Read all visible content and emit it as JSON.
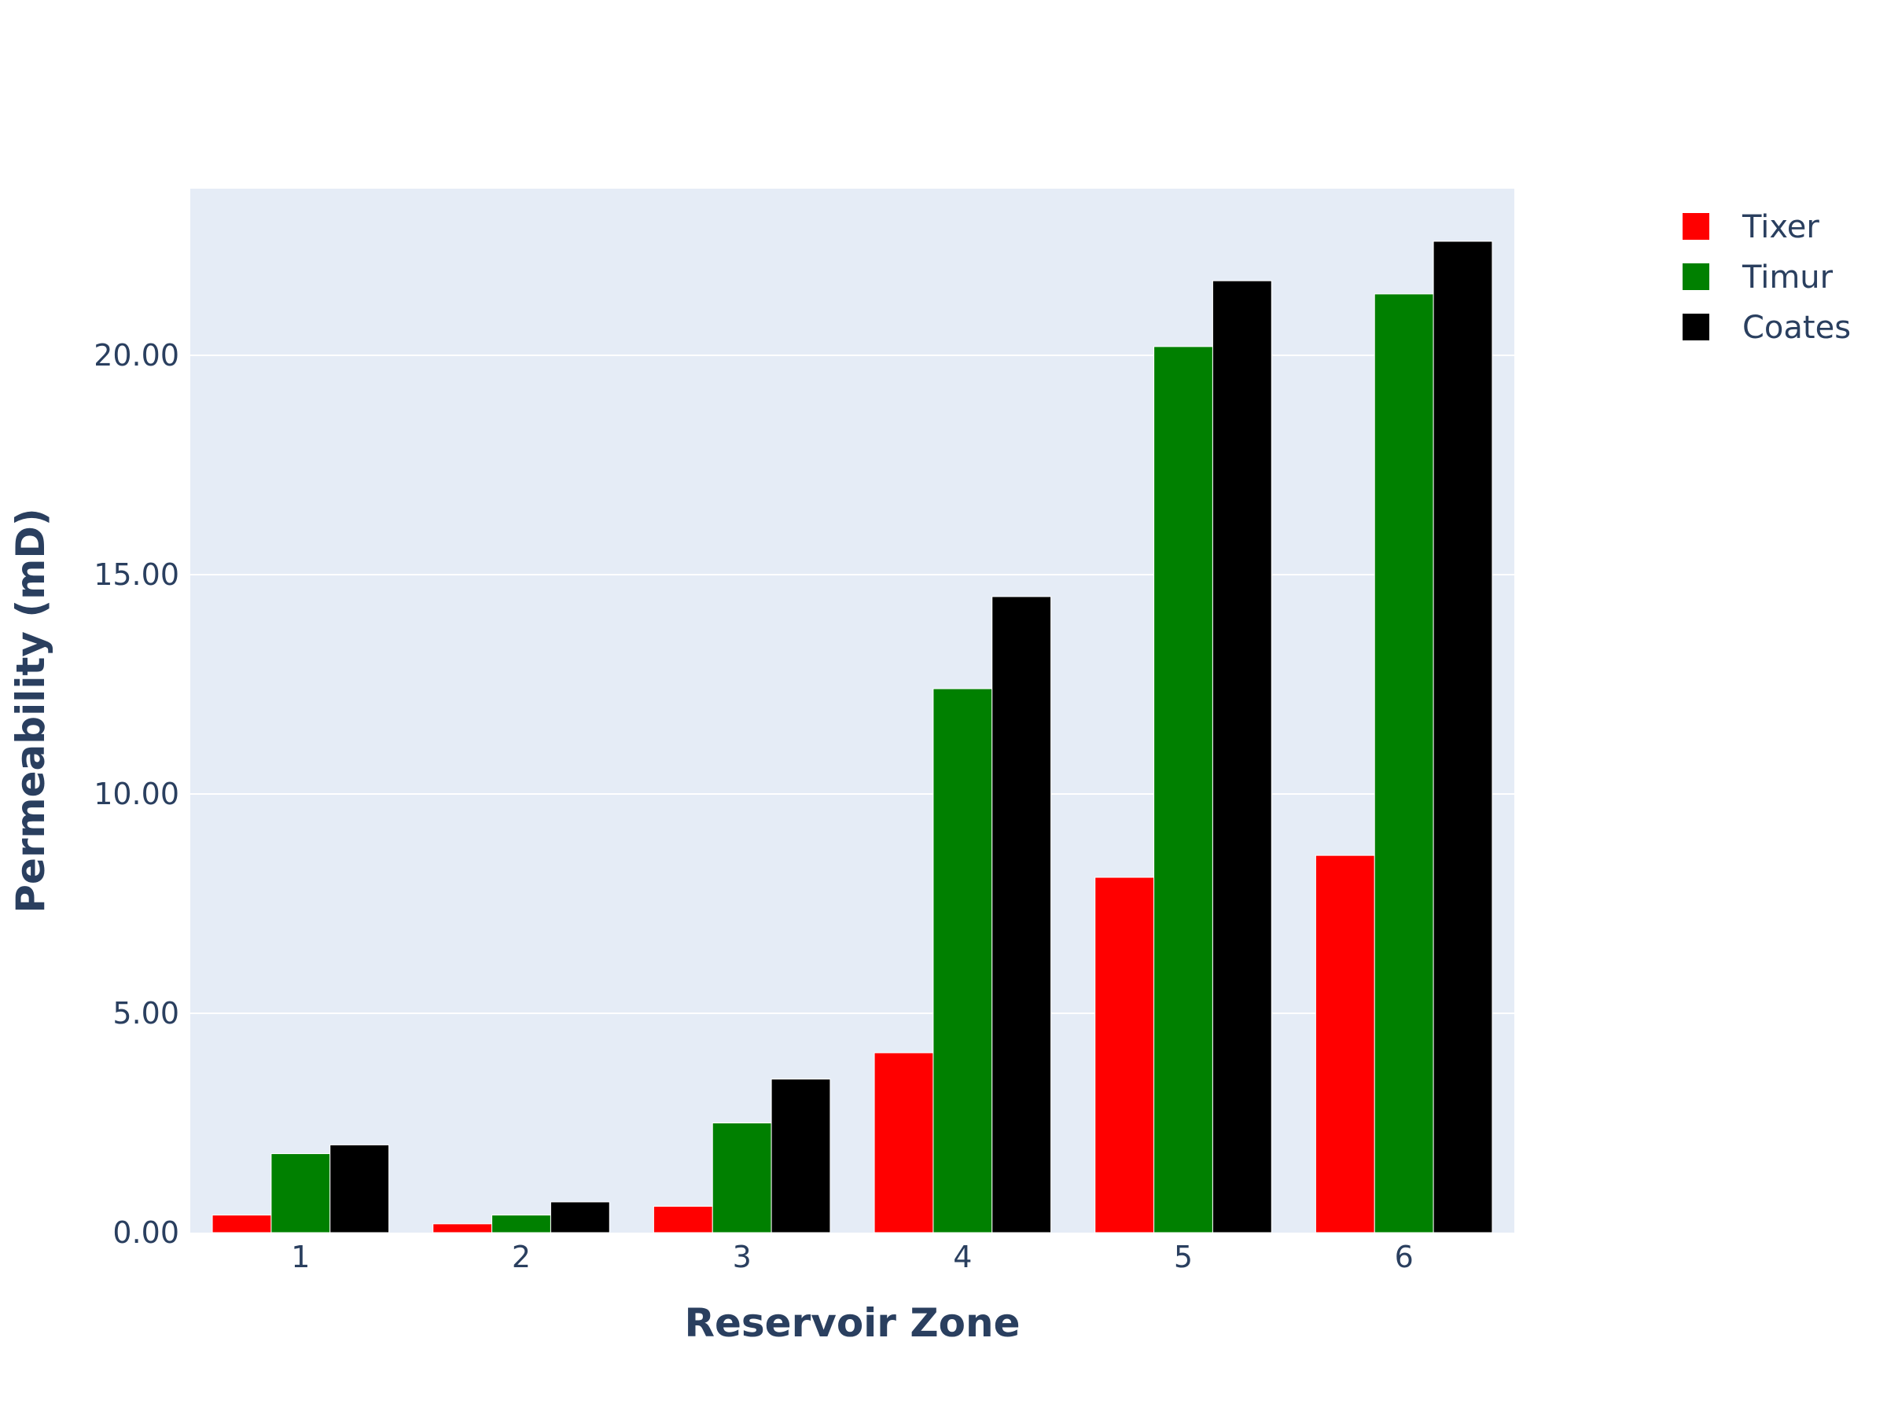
{
  "chart_data": {
    "type": "bar",
    "categories": [
      "1",
      "2",
      "3",
      "4",
      "5",
      "6"
    ],
    "series": [
      {
        "name": "Tixer",
        "color": "#ff0000",
        "values": [
          0.4,
          0.2,
          0.6,
          4.1,
          8.1,
          8.6
        ]
      },
      {
        "name": "Timur",
        "color": "#008000",
        "values": [
          1.8,
          0.4,
          2.5,
          12.4,
          20.2,
          21.4
        ]
      },
      {
        "name": "Coates",
        "color": "#000000",
        "values": [
          2.0,
          0.7,
          3.5,
          14.5,
          21.7,
          22.6
        ]
      }
    ],
    "xlabel": "Reservoir Zone",
    "ylabel": "Permeability (mD)",
    "ylim": [
      0,
      23.8
    ],
    "yticks": [
      "0.00",
      "5.00",
      "10.00",
      "15.00",
      "20.00"
    ],
    "grid": true,
    "legend_position": "top-right",
    "plot_background": "#e5ecf6"
  }
}
